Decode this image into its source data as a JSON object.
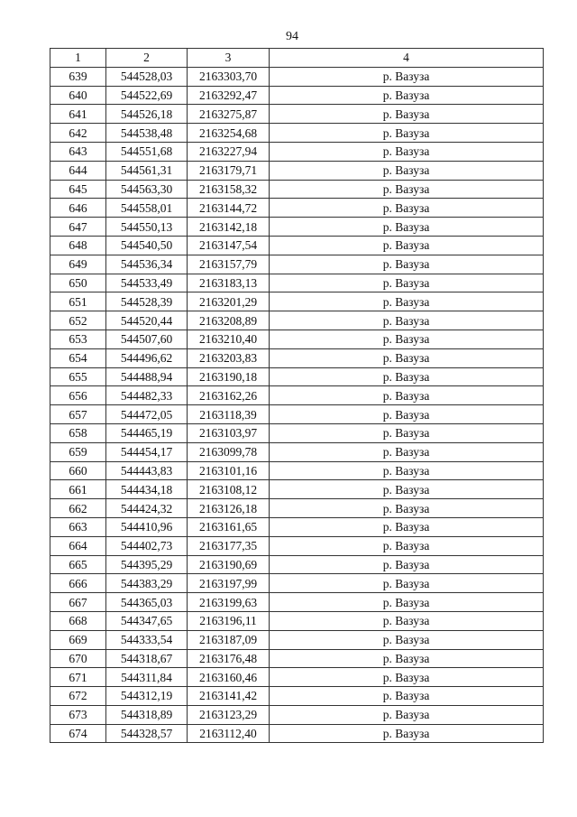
{
  "page_number": "94",
  "table": {
    "headers": [
      "1",
      "2",
      "3",
      "4"
    ],
    "rows": [
      [
        "639",
        "544528,03",
        "2163303,70",
        "р. Вазуза"
      ],
      [
        "640",
        "544522,69",
        "2163292,47",
        "р. Вазуза"
      ],
      [
        "641",
        "544526,18",
        "2163275,87",
        "р. Вазуза"
      ],
      [
        "642",
        "544538,48",
        "2163254,68",
        "р. Вазуза"
      ],
      [
        "643",
        "544551,68",
        "2163227,94",
        "р. Вазуза"
      ],
      [
        "644",
        "544561,31",
        "2163179,71",
        "р. Вазуза"
      ],
      [
        "645",
        "544563,30",
        "2163158,32",
        "р. Вазуза"
      ],
      [
        "646",
        "544558,01",
        "2163144,72",
        "р. Вазуза"
      ],
      [
        "647",
        "544550,13",
        "2163142,18",
        "р. Вазуза"
      ],
      [
        "648",
        "544540,50",
        "2163147,54",
        "р. Вазуза"
      ],
      [
        "649",
        "544536,34",
        "2163157,79",
        "р. Вазуза"
      ],
      [
        "650",
        "544533,49",
        "2163183,13",
        "р. Вазуза"
      ],
      [
        "651",
        "544528,39",
        "2163201,29",
        "р. Вазуза"
      ],
      [
        "652",
        "544520,44",
        "2163208,89",
        "р. Вазуза"
      ],
      [
        "653",
        "544507,60",
        "2163210,40",
        "р. Вазуза"
      ],
      [
        "654",
        "544496,62",
        "2163203,83",
        "р. Вазуза"
      ],
      [
        "655",
        "544488,94",
        "2163190,18",
        "р. Вазуза"
      ],
      [
        "656",
        "544482,33",
        "2163162,26",
        "р. Вазуза"
      ],
      [
        "657",
        "544472,05",
        "2163118,39",
        "р. Вазуза"
      ],
      [
        "658",
        "544465,19",
        "2163103,97",
        "р. Вазуза"
      ],
      [
        "659",
        "544454,17",
        "2163099,78",
        "р. Вазуза"
      ],
      [
        "660",
        "544443,83",
        "2163101,16",
        "р. Вазуза"
      ],
      [
        "661",
        "544434,18",
        "2163108,12",
        "р. Вазуза"
      ],
      [
        "662",
        "544424,32",
        "2163126,18",
        "р. Вазуза"
      ],
      [
        "663",
        "544410,96",
        "2163161,65",
        "р. Вазуза"
      ],
      [
        "664",
        "544402,73",
        "2163177,35",
        "р. Вазуза"
      ],
      [
        "665",
        "544395,29",
        "2163190,69",
        "р. Вазуза"
      ],
      [
        "666",
        "544383,29",
        "2163197,99",
        "р. Вазуза"
      ],
      [
        "667",
        "544365,03",
        "2163199,63",
        "р. Вазуза"
      ],
      [
        "668",
        "544347,65",
        "2163196,11",
        "р. Вазуза"
      ],
      [
        "669",
        "544333,54",
        "2163187,09",
        "р. Вазуза"
      ],
      [
        "670",
        "544318,67",
        "2163176,48",
        "р. Вазуза"
      ],
      [
        "671",
        "544311,84",
        "2163160,46",
        "р. Вазуза"
      ],
      [
        "672",
        "544312,19",
        "2163141,42",
        "р. Вазуза"
      ],
      [
        "673",
        "544318,89",
        "2163123,29",
        "р. Вазуза"
      ],
      [
        "674",
        "544328,57",
        "2163112,40",
        "р. Вазуза"
      ]
    ]
  }
}
